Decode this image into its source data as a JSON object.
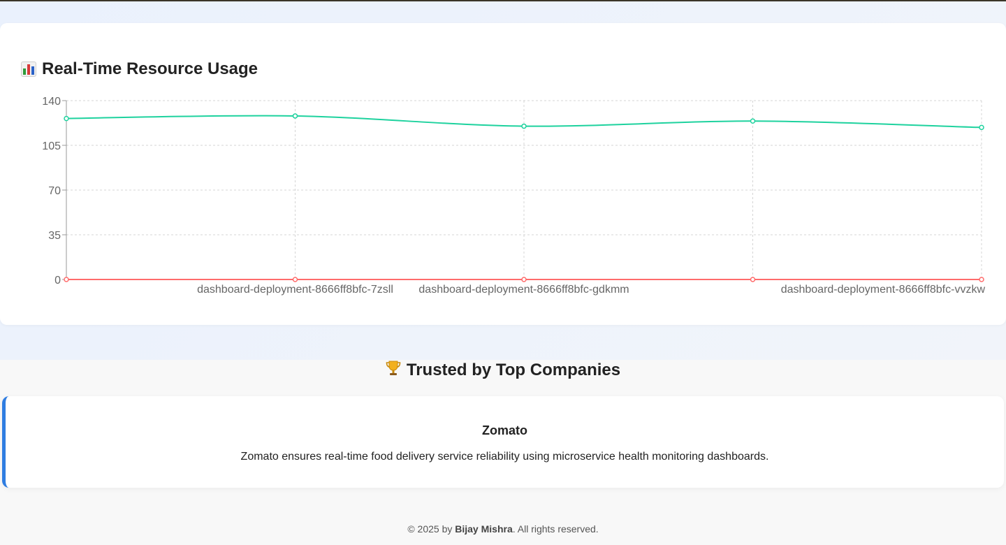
{
  "usage_section": {
    "icon": "bar-chart-icon",
    "title": "Real-Time Resource Usage"
  },
  "chart_data": {
    "type": "line",
    "title": "Real-Time Resource Usage",
    "xlabel": "",
    "ylabel": "",
    "categories": [
      "",
      "dashboard-deployment-8666ff8bfc-7zsll",
      "dashboard-deployment-8666ff8bfc-gdkmm",
      "",
      "dashboard-deployment-8666ff8bfc-vvzkw"
    ],
    "ylim": [
      0,
      140
    ],
    "yticks": [
      0,
      35,
      70,
      105,
      140
    ],
    "grid": true,
    "series": [
      {
        "values": [
          126,
          128,
          120,
          124,
          119
        ],
        "color": "#1ed29e"
      },
      {
        "values": [
          0,
          0,
          0,
          0,
          0
        ],
        "color": "#ff6b6b"
      }
    ]
  },
  "companies_section": {
    "icon": "trophy-icon",
    "title": "Trusted by Top Companies",
    "companies": [
      {
        "name": "Zomato",
        "description": "Zomato ensures real-time food delivery service reliability using microservice health monitoring dashboards."
      }
    ]
  },
  "footer": {
    "prefix": "© 2025 by ",
    "author": "Bijay Mishra",
    "suffix": ". All rights reserved."
  },
  "colors": {
    "accent": "#2f7de1",
    "series_1": "#1ed29e",
    "series_2": "#ff6b6b"
  }
}
